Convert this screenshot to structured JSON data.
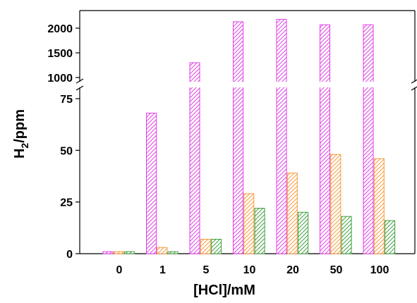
{
  "chart_data": {
    "type": "bar",
    "title": "",
    "xlabel": "[HCl]/mM",
    "ylabel_main": "H",
    "ylabel_sub": "2",
    "ylabel_rest": "/ppm",
    "categories": [
      "0",
      "1",
      "5",
      "10",
      "20",
      "50",
      "100"
    ],
    "y_axis_broken": true,
    "lower_ylim": [
      0,
      80
    ],
    "upper_ylim": [
      950,
      2150
    ],
    "lower_yticks": [
      "0",
      "25",
      "50",
      "75"
    ],
    "upper_yticks": [
      "1000",
      "1500",
      "2000"
    ],
    "legend": "none",
    "grid": false,
    "series": [
      {
        "color": "#e23ee8",
        "values": [
          1,
          68,
          1300,
          2130,
          2180,
          2070,
          2070
        ]
      },
      {
        "color": "#f59a3c",
        "values": [
          1,
          3,
          7,
          29,
          39,
          48,
          46
        ]
      },
      {
        "color": "#3f9e3f",
        "values": [
          1,
          1,
          7,
          22,
          20,
          18,
          16
        ]
      }
    ]
  }
}
